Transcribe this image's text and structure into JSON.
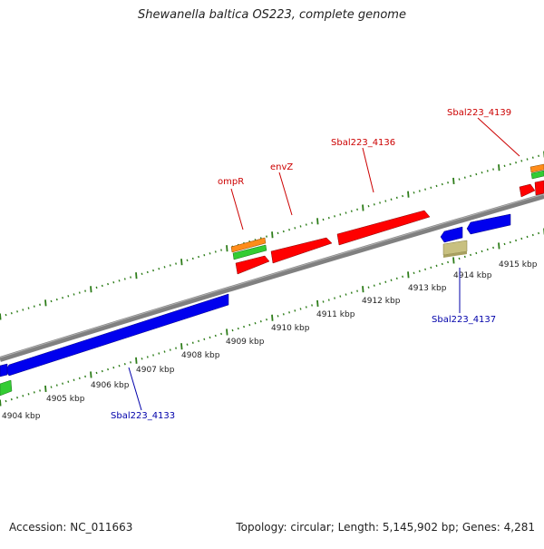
{
  "title": "Shewanella baltica OS223, complete genome",
  "footer": {
    "accession": "Accession: NC_011663",
    "summary": "Topology: circular; Length: 5,145,902 bp; Genes: 4,281"
  },
  "colors": {
    "backbone": "#808080",
    "tick": "#2e7d1a",
    "gene_forward": "#ff0000",
    "gene_reverse": "#0000ee",
    "gene_green": "#33cc33",
    "gene_orange": "#ff8c1a",
    "gene_khaki": "#c8c080",
    "label_forward": "#cc0000",
    "label_reverse": "#0000aa"
  },
  "scale_labels": [
    "4904 kbp",
    "4905 kbp",
    "4906 kbp",
    "4907 kbp",
    "4908 kbp",
    "4909 kbp",
    "4910 kbp",
    "4911 kbp",
    "4912 kbp",
    "4913 kbp",
    "4914 kbp",
    "4915 kbp"
  ],
  "gene_labels": {
    "ompR": "ompR",
    "envZ": "envZ",
    "sbal_4136": "Sbal223_4136",
    "sbal_4139": "Sbal223_4139",
    "sbal_4137": "Sbal223_4137",
    "sbal_4133": "Sbal223_4133"
  }
}
